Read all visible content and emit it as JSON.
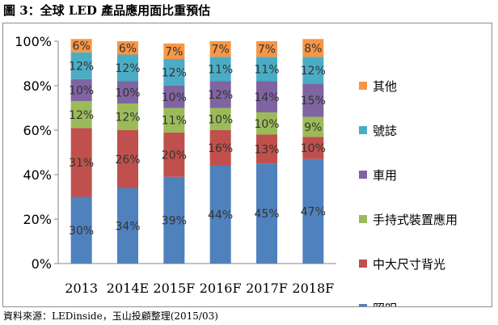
{
  "figure": {
    "title": "圖 3：全球 LED 產品應用面比重預估",
    "source": "資料來源：LEDinside，玉山投顧整理(2015/03)"
  },
  "chart_data": {
    "type": "bar",
    "stacked": true,
    "categories": [
      "2013",
      "2014E",
      "2015F",
      "2016F",
      "2017F",
      "2018F"
    ],
    "ylim": [
      0,
      100
    ],
    "yticks": [
      "0%",
      "20%",
      "40%",
      "60%",
      "80%",
      "100%"
    ],
    "grid": false,
    "legend_position": "right",
    "series": [
      {
        "name": "照明",
        "color": "#4f81bd",
        "values": [
          30,
          34,
          39,
          44,
          45,
          47
        ],
        "labels": [
          "30%",
          "34%",
          "39%",
          "44%",
          "45%",
          "47%"
        ]
      },
      {
        "name": "中大尺寸背光",
        "color": "#c0504d",
        "values": [
          31,
          26,
          20,
          16,
          13,
          10
        ],
        "labels": [
          "31%",
          "26%",
          "20%",
          "16%",
          "13%",
          "10%"
        ]
      },
      {
        "name": "手持式裝置應用",
        "color": "#9bbb59",
        "values": [
          12,
          12,
          11,
          10,
          10,
          9
        ],
        "labels": [
          "12%",
          "12%",
          "11%",
          "10%",
          "10%",
          "9%"
        ]
      },
      {
        "name": "車用",
        "color": "#8064a2",
        "values": [
          10,
          10,
          10,
          12,
          14,
          15
        ],
        "labels": [
          "10%",
          "10%",
          "10%",
          "12%",
          "14%",
          "15%"
        ]
      },
      {
        "name": "號誌",
        "color": "#4bacc6",
        "values": [
          12,
          12,
          12,
          11,
          11,
          12
        ],
        "labels": [
          "12%",
          "12%",
          "12%",
          "11%",
          "11%",
          "12%"
        ]
      },
      {
        "name": "其他",
        "color": "#f79646",
        "values": [
          6,
          6,
          7,
          7,
          7,
          8
        ],
        "labels": [
          "6%",
          "6%",
          "7%",
          "7%",
          "7%",
          "8%"
        ]
      }
    ]
  }
}
